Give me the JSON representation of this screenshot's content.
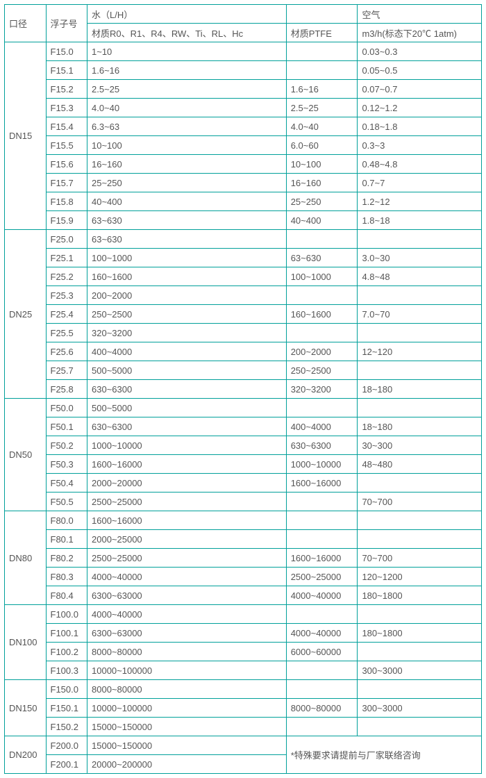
{
  "border_color": "#00a09a",
  "text_color": "#555555",
  "font_size": 13,
  "header": {
    "col0": "口径",
    "col1": "浮子号",
    "col2_top": "水（L/H）",
    "col2_bot": "材质R0、R1、R4、RW、Ti、RL、Hc",
    "col3_top": "",
    "col3_bot": "材质PTFE",
    "col4_top": "空气",
    "col4_bot": "m3/h(标态下20℃ 1atm)"
  },
  "groups": [
    {
      "dn": "DN15",
      "rows": [
        {
          "f": "F15.0",
          "w": "1~10",
          "p": "",
          "a": "0.03~0.3"
        },
        {
          "f": "F15.1",
          "w": "1.6~16",
          "p": "",
          "a": "0.05~0.5"
        },
        {
          "f": "F15.2",
          "w": "2.5~25",
          "p": "1.6~16",
          "a": "0.07~0.7"
        },
        {
          "f": "F15.3",
          "w": "4.0~40",
          "p": "2.5~25",
          "a": "0.12~1.2"
        },
        {
          "f": "F15.4",
          "w": "6.3~63",
          "p": "4.0~40",
          "a": "0.18~1.8"
        },
        {
          "f": "F15.5",
          "w": "10~100",
          "p": "6.0~60",
          "a": "0.3~3"
        },
        {
          "f": "F15.6",
          "w": "16~160",
          "p": "10~100",
          "a": "0.48~4.8"
        },
        {
          "f": "F15.7",
          "w": "25~250",
          "p": "16~160",
          "a": "0.7~7"
        },
        {
          "f": "F15.8",
          "w": "40~400",
          "p": "25~250",
          "a": "1.2~12"
        },
        {
          "f": "F15.9",
          "w": "63~630",
          "p": "40~400",
          "a": "1.8~18"
        }
      ]
    },
    {
      "dn": "DN25",
      "rows": [
        {
          "f": "F25.0",
          "w": "63~630",
          "p": "",
          "a": ""
        },
        {
          "f": "F25.1",
          "w": "100~1000",
          "p": "63~630",
          "a": "3.0~30"
        },
        {
          "f": "F25.2",
          "w": "160~1600",
          "p": "100~1000",
          "a": "4.8~48"
        },
        {
          "f": "F25.3",
          "w": "200~2000",
          "p": "",
          "a": ""
        },
        {
          "f": "F25.4",
          "w": "250~2500",
          "p": "160~1600",
          "a": "7.0~70"
        },
        {
          "f": "F25.5",
          "w": "320~3200",
          "p": "",
          "a": ""
        },
        {
          "f": "F25.6",
          "w": "400~4000",
          "p": "200~2000",
          "a": "12~120"
        },
        {
          "f": "F25.7",
          "w": "500~5000",
          "p": "250~2500",
          "a": ""
        },
        {
          "f": "F25.8",
          "w": "630~6300",
          "p": "320~3200",
          "a": "18~180"
        }
      ]
    },
    {
      "dn": "DN50",
      "rows": [
        {
          "f": "F50.0",
          "w": "500~5000",
          "p": "",
          "a": ""
        },
        {
          "f": "F50.1",
          "w": "630~6300",
          "p": "400~4000",
          "a": "18~180"
        },
        {
          "f": "F50.2",
          "w": "1000~10000",
          "p": "630~6300",
          "a": "30~300"
        },
        {
          "f": "F50.3",
          "w": "1600~16000",
          "p": "1000~10000",
          "a": "48~480"
        },
        {
          "f": "F50.4",
          "w": "2000~20000",
          "p": "1600~16000",
          "a": ""
        },
        {
          "f": "F50.5",
          "w": "2500~25000",
          "p": "",
          "a": "70~700"
        }
      ]
    },
    {
      "dn": "DN80",
      "rows": [
        {
          "f": "F80.0",
          "w": "1600~16000",
          "p": "",
          "a": ""
        },
        {
          "f": "F80.1",
          "w": "2000~25000",
          "p": "",
          "a": ""
        },
        {
          "f": "F80.2",
          "w": "2500~25000",
          "p": "1600~16000",
          "a": "70~700"
        },
        {
          "f": "F80.3",
          "w": "4000~40000",
          "p": "2500~25000",
          "a": "120~1200"
        },
        {
          "f": "F80.4",
          "w": "6300~63000",
          "p": "4000~40000",
          "a": "180~1800"
        }
      ]
    },
    {
      "dn": "DN100",
      "rows": [
        {
          "f": "F100.0",
          "w": "4000~40000",
          "p": "",
          "a": ""
        },
        {
          "f": "F100.1",
          "w": "6300~63000",
          "p": "4000~40000",
          "a": "180~1800"
        },
        {
          "f": "F100.2",
          "w": "8000~80000",
          "p": "6000~60000",
          "a": ""
        },
        {
          "f": "F100.3",
          "w": "10000~100000",
          "p": "",
          "a": "300~3000"
        }
      ]
    },
    {
      "dn": "DN150",
      "rows": [
        {
          "f": "F150.0",
          "w": "8000~80000",
          "p": "",
          "a": ""
        },
        {
          "f": "F150.1",
          "w": "10000~100000",
          "p": "8000~80000",
          "a": "300~3000"
        },
        {
          "f": "F150.2",
          "w": "15000~150000",
          "p": "",
          "a": ""
        }
      ]
    },
    {
      "dn": "DN200",
      "rows": [
        {
          "f": "F200.0",
          "w": "15000~150000",
          "note": "*特殊要求请提前与厂家联络咨询"
        },
        {
          "f": "F200.1",
          "w": "20000~200000"
        }
      ]
    }
  ]
}
